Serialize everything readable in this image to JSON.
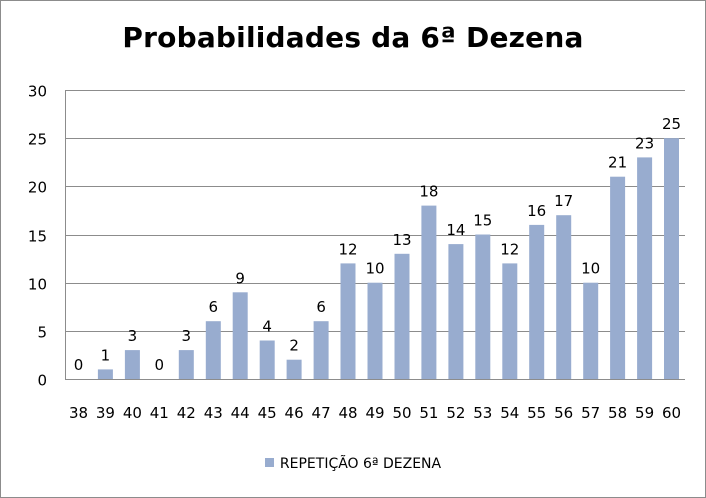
{
  "chart_data": {
    "type": "bar",
    "title": "Probabilidades da 6ª Dezena",
    "categories": [
      "38",
      "39",
      "40",
      "41",
      "42",
      "43",
      "44",
      "45",
      "46",
      "47",
      "48",
      "49",
      "50",
      "51",
      "52",
      "53",
      "54",
      "55",
      "56",
      "57",
      "58",
      "59",
      "60"
    ],
    "series": [
      {
        "name": "REPETIÇÃO 6ª DEZENA",
        "values": [
          0,
          1,
          3,
          0,
          3,
          6,
          9,
          4,
          2,
          6,
          12,
          10,
          13,
          18,
          14,
          15,
          12,
          16,
          17,
          10,
          21,
          23,
          25
        ]
      }
    ],
    "ylim": [
      0,
      30
    ],
    "yticks": [
      0,
      5,
      10,
      15,
      20,
      25,
      30
    ],
    "grid": true,
    "legend_position": "bottom",
    "bar_color": "#98accf",
    "grid_color": "#8c8c8c"
  }
}
